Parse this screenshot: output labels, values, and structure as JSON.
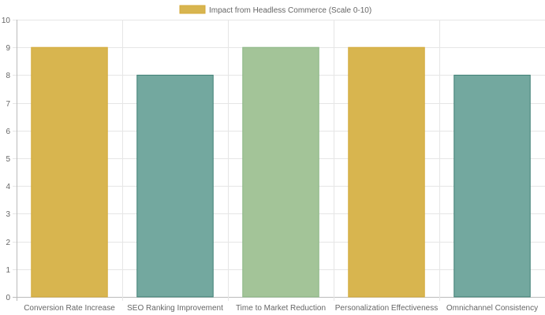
{
  "chart_data": {
    "type": "bar",
    "legend": {
      "label": "Impact from Headless Commerce (Scale 0-10)",
      "position": "top"
    },
    "categories": [
      "Conversion Rate Increase",
      "SEO Ranking Improvement",
      "Time to Market Reduction",
      "Personalization Effectiveness",
      "Omnichannel Consistency"
    ],
    "series": [
      {
        "name": "Impact from Headless Commerce (Scale 0-10)",
        "values": [
          9,
          8,
          9,
          9,
          8
        ]
      }
    ],
    "bar_colors": [
      "#d8b54f",
      "#73a89f",
      "#a3c498",
      "#d8b54f",
      "#73a89f"
    ],
    "bar_border_colors": [
      "#d4aa3a",
      "#3f7f75",
      "#8bb784",
      "#d4aa3a",
      "#3f7f75"
    ],
    "legend_color": "#d8b54f",
    "ylim": [
      0,
      10
    ],
    "yticks": [
      0,
      1,
      2,
      3,
      4,
      5,
      6,
      7,
      8,
      9,
      10
    ],
    "grid": true
  }
}
